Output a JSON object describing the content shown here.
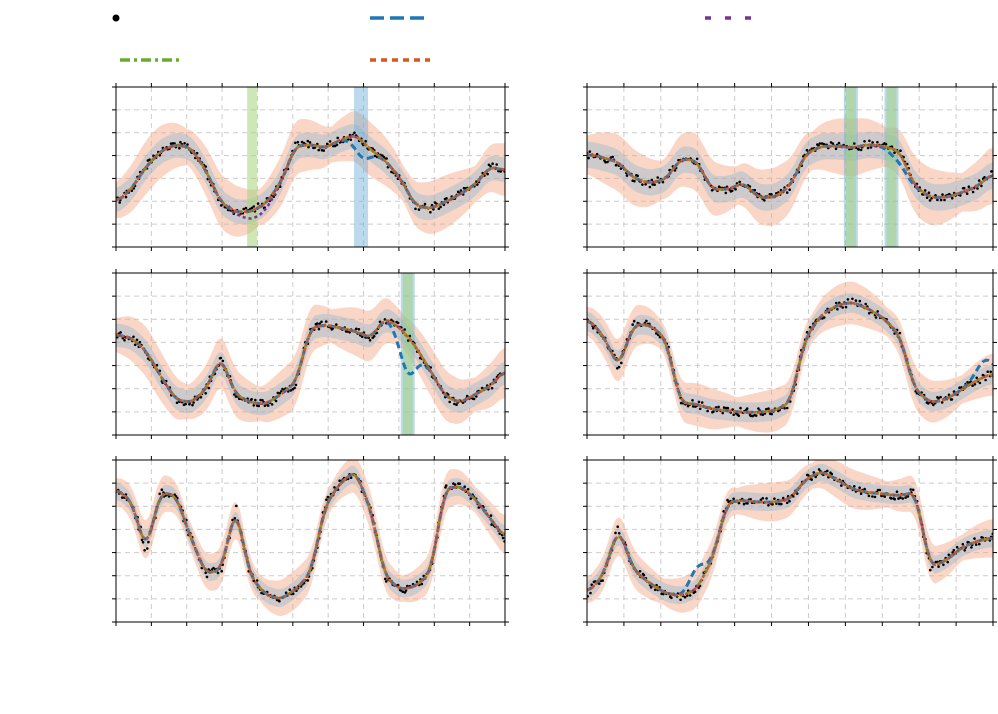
{
  "colors": {
    "observed": "#000000",
    "blue": "#1f77b4",
    "purple": "#7b3294",
    "green": "#6aab2e",
    "orange": "#d9571c",
    "band_orange": "#f4a582",
    "band_blue": "#6baed6",
    "band_green": "#a6d47a",
    "grid": "#cccccc"
  },
  "legend": {
    "placement": "top",
    "entries": [
      {
        "marker": "dot",
        "color": "observed",
        "label": ""
      },
      {
        "marker": "dashed",
        "color": "blue",
        "label": ""
      },
      {
        "marker": "dashed-sparse",
        "color": "purple",
        "label": ""
      },
      {
        "marker": "dash-dot",
        "color": "green",
        "label": ""
      },
      {
        "marker": "dotted",
        "color": "orange",
        "label": ""
      }
    ]
  },
  "chart_data": [
    {
      "type": "line",
      "panel": "top-left",
      "grid": true,
      "xlim": [
        0,
        1
      ],
      "ylim": [
        0,
        1
      ],
      "y": [
        0.28,
        0.36,
        0.5,
        0.6,
        0.64,
        0.62,
        0.48,
        0.28,
        0.22,
        0.22,
        0.27,
        0.4,
        0.63,
        0.64,
        0.62,
        0.67,
        0.7,
        0.61,
        0.54,
        0.43,
        0.26,
        0.24,
        0.28,
        0.33,
        0.39,
        0.5,
        0.48
      ],
      "blue_dev": {
        "center": 0.63,
        "width": 0.03,
        "depth": -0.1
      },
      "purple_dev": {
        "center": 0.36,
        "width": 0.05,
        "depth": -0.05
      },
      "band_width": 0.14,
      "green_spikes": [
        0.35
      ],
      "blue_spikes": [
        0.63
      ]
    },
    {
      "type": "line",
      "panel": "top-right",
      "grid": true,
      "xlim": [
        0,
        1
      ],
      "ylim": [
        0,
        1
      ],
      "y": [
        0.58,
        0.56,
        0.53,
        0.43,
        0.4,
        0.42,
        0.55,
        0.54,
        0.36,
        0.36,
        0.4,
        0.31,
        0.31,
        0.38,
        0.58,
        0.63,
        0.63,
        0.62,
        0.64,
        0.63,
        0.6,
        0.38,
        0.31,
        0.31,
        0.34,
        0.38,
        0.46
      ],
      "blue_dev": {
        "center": 0.77,
        "width": 0.03,
        "depth": -0.06
      },
      "purple_dev": {
        "center": 0.5,
        "width": 0.001,
        "depth": 0
      },
      "band_width": 0.15,
      "green_spikes": [
        0.65,
        0.75
      ],
      "blue_spikes": [
        0.65,
        0.75
      ]
    },
    {
      "type": "line",
      "panel": "middle-left",
      "grid": true,
      "xlim": [
        0,
        1
      ],
      "ylim": [
        0,
        1
      ],
      "y": [
        0.62,
        0.6,
        0.52,
        0.36,
        0.22,
        0.2,
        0.28,
        0.48,
        0.25,
        0.2,
        0.19,
        0.25,
        0.32,
        0.66,
        0.68,
        0.66,
        0.64,
        0.6,
        0.72,
        0.66,
        0.55,
        0.4,
        0.24,
        0.2,
        0.25,
        0.3,
        0.4
      ],
      "blue_dev": {
        "center": 0.75,
        "width": 0.03,
        "depth": -0.22
      },
      "purple_dev": {
        "center": 0.5,
        "width": 0.001,
        "depth": 0
      },
      "band_width": 0.13,
      "green_spikes": [
        0.75
      ],
      "blue_spikes": [
        0.75
      ]
    },
    {
      "type": "line",
      "panel": "middle-right",
      "grid": true,
      "xlim": [
        0,
        1
      ],
      "ylim": [
        0,
        1
      ],
      "y": [
        0.72,
        0.62,
        0.42,
        0.68,
        0.68,
        0.6,
        0.2,
        0.19,
        0.16,
        0.15,
        0.14,
        0.14,
        0.15,
        0.2,
        0.6,
        0.74,
        0.8,
        0.82,
        0.78,
        0.72,
        0.62,
        0.28,
        0.2,
        0.22,
        0.28,
        0.34,
        0.38
      ],
      "blue_dev": {
        "center": 0.98,
        "width": 0.03,
        "depth": 0.1
      },
      "purple_dev": {
        "center": 0.5,
        "width": 0.001,
        "depth": 0
      },
      "band_width": 0.11,
      "green_spikes": [],
      "blue_spikes": []
    },
    {
      "type": "line",
      "panel": "bottom-left",
      "grid": true,
      "xlim": [
        0,
        1
      ],
      "ylim": [
        0,
        1
      ],
      "y": [
        0.82,
        0.75,
        0.45,
        0.8,
        0.78,
        0.52,
        0.3,
        0.32,
        0.7,
        0.28,
        0.17,
        0.14,
        0.2,
        0.3,
        0.72,
        0.86,
        0.93,
        0.7,
        0.28,
        0.2,
        0.22,
        0.3,
        0.82,
        0.84,
        0.76,
        0.64,
        0.52
      ],
      "blue_dev": {
        "center": 0.5,
        "width": 0.001,
        "depth": 0
      },
      "purple_dev": {
        "center": 0.5,
        "width": 0.001,
        "depth": 0
      },
      "band_width": 0.1,
      "green_spikes": [],
      "blue_spikes": []
    },
    {
      "type": "line",
      "panel": "bottom-right",
      "grid": true,
      "xlim": [
        0,
        1
      ],
      "ylim": [
        0,
        1
      ],
      "y": [
        0.18,
        0.28,
        0.58,
        0.32,
        0.24,
        0.18,
        0.16,
        0.2,
        0.38,
        0.74,
        0.75,
        0.74,
        0.74,
        0.76,
        0.88,
        0.93,
        0.88,
        0.82,
        0.8,
        0.79,
        0.78,
        0.8,
        0.34,
        0.38,
        0.46,
        0.5,
        0.52
      ],
      "blue_dev": {
        "center": 0.27,
        "width": 0.025,
        "depth": 0.12
      },
      "purple_dev": {
        "center": 0.5,
        "width": 0.001,
        "depth": 0
      },
      "band_width": 0.1,
      "green_spikes": [],
      "blue_spikes": []
    }
  ]
}
